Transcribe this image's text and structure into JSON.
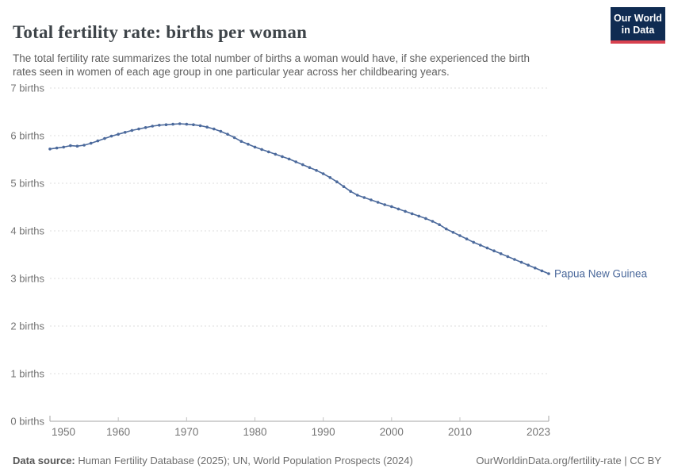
{
  "header": {
    "title": "Total fertility rate: births per woman",
    "subtitle_lines": [
      "The total fertility rate summarizes the total number of births a woman would have, if she experienced the birth",
      "rates seen in women of each age group in one particular year across her childbearing years."
    ],
    "logo": {
      "line1": "Our World",
      "line2": "in Data"
    }
  },
  "chart_data": {
    "type": "line",
    "title": "Total fertility rate: births per woman",
    "xlabel": "",
    "ylabel": "",
    "xlim": [
      1950,
      2023
    ],
    "ylim": [
      0,
      7
    ],
    "grid": "horizontal-dashed",
    "legend_position": "end-of-line-label",
    "x_ticks": [
      1950,
      1960,
      1970,
      1980,
      1990,
      2000,
      2010,
      2023
    ],
    "y_ticks": [
      0,
      1,
      2,
      3,
      4,
      5,
      6,
      7
    ],
    "y_tick_labels": [
      "0 births",
      "1 births",
      "2 births",
      "3 births",
      "4 births",
      "5 births",
      "6 births",
      "7 births"
    ],
    "series": [
      {
        "name": "Papua New Guinea",
        "color": "#4C6A9C",
        "x": [
          1950,
          1951,
          1952,
          1953,
          1954,
          1955,
          1956,
          1957,
          1958,
          1959,
          1960,
          1961,
          1962,
          1963,
          1964,
          1965,
          1966,
          1967,
          1968,
          1969,
          1970,
          1971,
          1972,
          1973,
          1974,
          1975,
          1976,
          1977,
          1978,
          1979,
          1980,
          1981,
          1982,
          1983,
          1984,
          1985,
          1986,
          1987,
          1988,
          1989,
          1990,
          1991,
          1992,
          1993,
          1994,
          1995,
          1996,
          1997,
          1998,
          1999,
          2000,
          2001,
          2002,
          2003,
          2004,
          2005,
          2006,
          2007,
          2008,
          2009,
          2010,
          2011,
          2012,
          2013,
          2014,
          2015,
          2016,
          2017,
          2018,
          2019,
          2020,
          2021,
          2022,
          2023
        ],
        "values": [
          5.72,
          5.74,
          5.76,
          5.79,
          5.78,
          5.8,
          5.84,
          5.89,
          5.94,
          5.99,
          6.03,
          6.07,
          6.11,
          6.14,
          6.17,
          6.2,
          6.22,
          6.23,
          6.24,
          6.25,
          6.24,
          6.23,
          6.21,
          6.18,
          6.14,
          6.09,
          6.03,
          5.96,
          5.88,
          5.82,
          5.76,
          5.71,
          5.66,
          5.61,
          5.56,
          5.51,
          5.45,
          5.39,
          5.33,
          5.27,
          5.2,
          5.12,
          5.03,
          4.93,
          4.83,
          4.75,
          4.7,
          4.65,
          4.6,
          4.55,
          4.51,
          4.46,
          4.41,
          4.36,
          4.31,
          4.26,
          4.2,
          4.13,
          4.04,
          3.97,
          3.9,
          3.83,
          3.76,
          3.7,
          3.64,
          3.58,
          3.52,
          3.46,
          3.4,
          3.34,
          3.28,
          3.22,
          3.16,
          3.1
        ]
      }
    ]
  },
  "footer": {
    "source_label": "Data source:",
    "source_text": " Human Fertility Database (2025); UN, World Population Prospects (2024)",
    "link_text": "OurWorldinData.org/fertility-rate | CC BY"
  },
  "colors": {
    "series_blue": "#4C6A9C",
    "title": "#3e4449",
    "subtitle": "#5f5f5f",
    "axis_text": "#757575",
    "gridline": "#dcdcdc",
    "axis_line": "#a5a5a5",
    "tick": "#c2c2c2",
    "footer": "#6d6d6d",
    "logo_bg": "#102C52",
    "logo_accent": "#D8414F"
  }
}
